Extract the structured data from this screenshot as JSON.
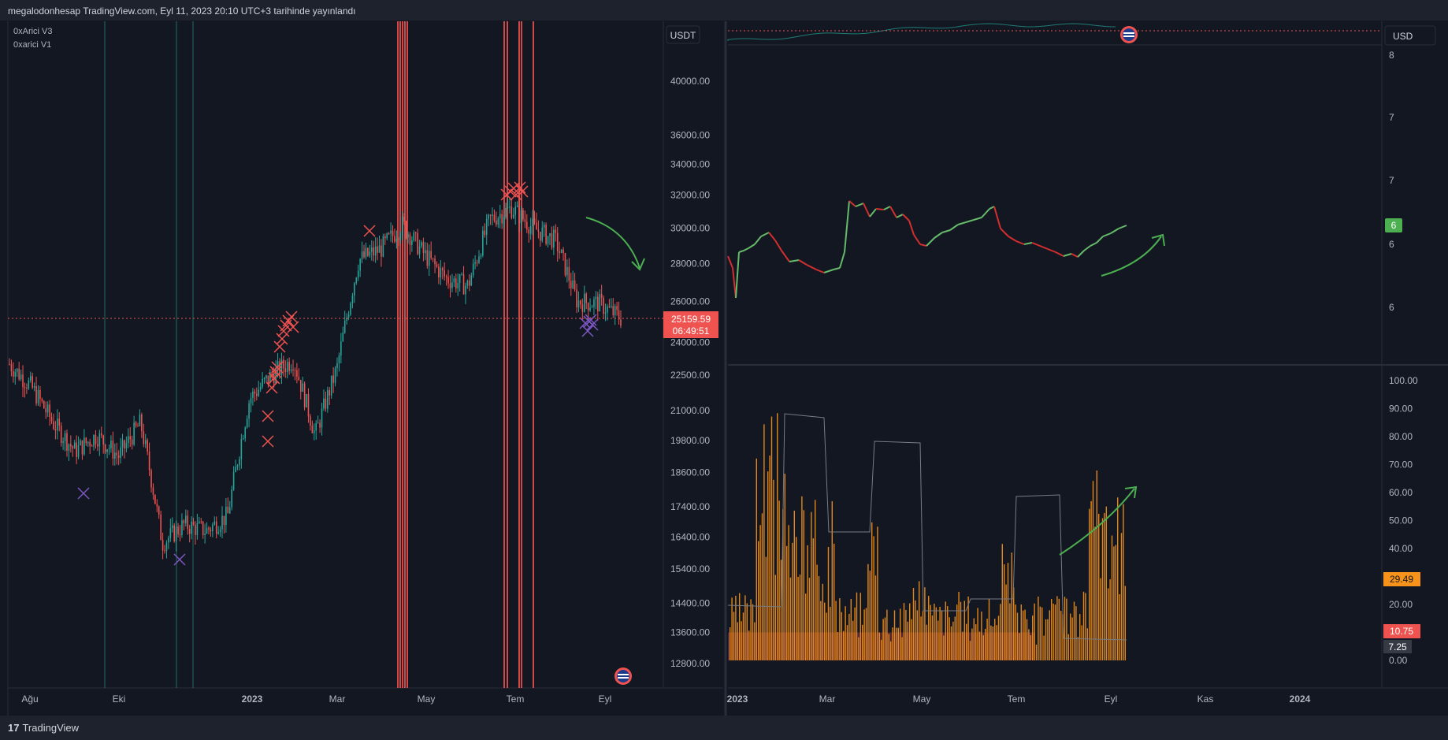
{
  "header": {
    "published_text": "megalodonhesap TradingView.com, Eyl 11, 2023 20:10 UTC+3 tarihinde yayınlandı"
  },
  "footer": {
    "brand": "TradingView",
    "logo_glyph": "17"
  },
  "colors": {
    "bg": "#131722",
    "panel_border": "#2a2e39",
    "up": "#26a69a",
    "down": "#ef5350",
    "orange": "#f7931a",
    "green_arrow": "#4caf50",
    "purple": "#7e57c2"
  },
  "left_chart": {
    "legend": [
      "0xArici V3",
      "0xarici V1"
    ],
    "currency_label": "USDT",
    "y_ticks": [
      "40000.00",
      "36000.00",
      "34000.00",
      "32000.00",
      "30000.00",
      "28000.00",
      "26000.00",
      "24000.00",
      "22500.00",
      "21000.00",
      "19800.00",
      "18600.00",
      "17400.00",
      "16400.00",
      "15400.00",
      "14400.00",
      "13600.00",
      "12800.00"
    ],
    "x_ticks": [
      "Ağu",
      "Eki",
      "2023",
      "Mar",
      "May",
      "Tem",
      "Eyl"
    ],
    "last_price": "25159.59",
    "countdown": "06:49:51",
    "icon": "us-flag-icon"
  },
  "right_top": {
    "currency_label": "USD",
    "y_ticks": [
      "8",
      "7",
      "7",
      "6",
      "6"
    ],
    "last_value": "6",
    "icon": "us-flag-icon"
  },
  "right_bottom": {
    "y_ticks": [
      "100.00",
      "90.00",
      "80.00",
      "70.00",
      "60.00",
      "50.00",
      "40.00",
      "30.00",
      "20.00",
      "10.00",
      "0.00"
    ],
    "value_orange": "29.49",
    "value_red": "10.75",
    "value_gray": "7.25",
    "x_ticks": [
      "2023",
      "Mar",
      "May",
      "Tem",
      "Eyl",
      "Kas",
      "2024"
    ]
  },
  "chart_data": [
    {
      "type": "candlestick",
      "x": [
        "Ağu",
        "Eki",
        "2023",
        "Mar",
        "May",
        "Tem",
        "Eyl"
      ],
      "ylabel": "",
      "ylim": [
        12800,
        40000
      ],
      "scale": "log",
      "approx_close_path": [
        23000,
        22000,
        20500,
        19400,
        20000,
        19200,
        20500,
        16200,
        16800,
        16600,
        17100,
        21500,
        22500,
        23200,
        20000,
        22800,
        28200,
        28800,
        30200,
        28500,
        27200,
        26800,
        30500,
        31200,
        30000,
        29300,
        26000,
        25900,
        25160
      ],
      "last_price": 25159.59
    },
    {
      "type": "line",
      "x": [
        "2023",
        "Mar",
        "May",
        "Tem",
        "Eyl"
      ],
      "ylim": [
        6,
        8
      ],
      "last_value": 6
    },
    {
      "type": "bar",
      "x": [
        "2023",
        "Mar",
        "May",
        "Tem",
        "Eyl"
      ],
      "ylim": [
        0,
        100
      ],
      "last_values": {
        "orange": 29.49,
        "red": 10.75,
        "gray": 7.25
      }
    }
  ]
}
